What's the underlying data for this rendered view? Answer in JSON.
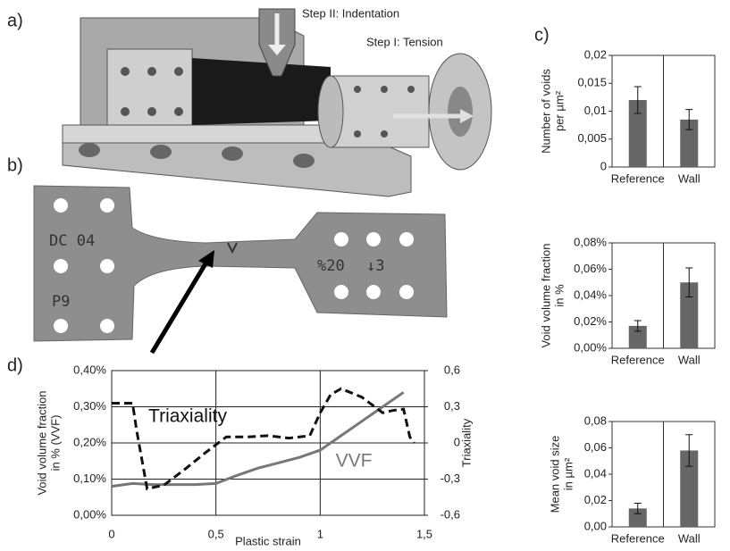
{
  "figure": {
    "panel_labels": [
      "a)",
      "b)",
      "c)",
      "d)"
    ],
    "step_labels": [
      "Step II: Indentation",
      "Step I: Tension"
    ],
    "specimen_marks": [
      "DC 04",
      "P9",
      "%20",
      "↓3"
    ]
  },
  "chart_data": [
    {
      "type": "bar",
      "ylabel": [
        "Number of voids",
        "per µm²"
      ],
      "categories": [
        "Reference",
        "Wall"
      ],
      "values": [
        0.012,
        0.0085
      ],
      "errors": [
        0.0024,
        0.0018
      ],
      "color": "#666666",
      "ylim": [
        0,
        0.02
      ],
      "yticks": [
        0,
        {
          "value": 0.005,
          "label": "0,005"
        },
        {
          "value": 0.01,
          "label": "0,01"
        },
        {
          "value": 0.015,
          "label": "0,015"
        },
        {
          "value": 0.02,
          "label": "0,02"
        }
      ]
    },
    {
      "type": "bar",
      "ylabel": [
        "Void volume fraction",
        "in %"
      ],
      "categories": [
        "Reference",
        "Wall"
      ],
      "values": [
        0.017,
        0.05
      ],
      "errors": [
        0.004,
        0.011
      ],
      "color": "#666666",
      "ylim": [
        0,
        0.08
      ],
      "yticks": [
        {
          "value": 0,
          "label": "0,00%"
        },
        {
          "value": 0.02,
          "label": "0,02%"
        },
        {
          "value": 0.04,
          "label": "0,04%"
        },
        {
          "value": 0.06,
          "label": "0,06%"
        },
        {
          "value": 0.08,
          "label": "0,08%"
        }
      ]
    },
    {
      "type": "bar",
      "ylabel": [
        "Mean void size",
        "in µm²"
      ],
      "categories": [
        "Reference",
        "Wall"
      ],
      "values": [
        0.014,
        0.058
      ],
      "errors": [
        0.004,
        0.012
      ],
      "color": "#666666",
      "ylim": [
        0,
        0.08
      ],
      "yticks": [
        {
          "value": 0,
          "label": "0,00"
        },
        {
          "value": 0.02,
          "label": "0,02"
        },
        {
          "value": 0.04,
          "label": "0,04"
        },
        {
          "value": 0.06,
          "label": "0,06"
        },
        {
          "value": 0.08,
          "label": "0,08"
        }
      ]
    },
    {
      "type": "line",
      "xlabel": "Plastic strain",
      "ylabel": [
        "Void volume fraction",
        "in % (VVF)"
      ],
      "y2label": "Triaxiality",
      "xlim": [
        0,
        1.5
      ],
      "xticks": [
        0,
        {
          "value": 0.5,
          "label": "0,5"
        },
        1,
        {
          "value": 1.5,
          "label": "1,5"
        }
      ],
      "ylim": [
        0,
        0.4
      ],
      "yticks": [
        {
          "value": 0,
          "label": "0,00%"
        },
        {
          "value": 0.1,
          "label": "0,10%"
        },
        {
          "value": 0.2,
          "label": "0,20%"
        },
        {
          "value": 0.3,
          "label": "0,30%"
        },
        {
          "value": 0.4,
          "label": "0,40%"
        }
      ],
      "y2lim": [
        -0.6,
        0.6
      ],
      "y2ticks": [
        {
          "value": -0.6,
          "label": "-0,6"
        },
        {
          "value": -0.3,
          "label": "-0,3"
        },
        0,
        {
          "value": 0.3,
          "label": "0,3"
        },
        {
          "value": 0.6,
          "label": "0,6"
        }
      ],
      "grid": true,
      "series": [
        {
          "name": "VVF",
          "color": "#777777",
          "line_style": "solid",
          "x": [
            0,
            0.1,
            0.2,
            0.3,
            0.4,
            0.5,
            0.6,
            0.7,
            0.8,
            0.9,
            1.0,
            1.1,
            1.2,
            1.3,
            1.4
          ],
          "values": [
            0.08,
            0.088,
            0.085,
            0.085,
            0.085,
            0.088,
            0.11,
            0.13,
            0.145,
            0.16,
            0.18,
            0.22,
            0.26,
            0.3,
            0.34
          ]
        },
        {
          "name": "Triaxiality",
          "color": "#111111",
          "line_style": "dashed",
          "axis": "y2",
          "x": [
            0,
            0.1,
            0.12,
            0.17,
            0.25,
            0.35,
            0.45,
            0.55,
            0.65,
            0.75,
            0.85,
            0.95,
            1.0,
            1.05,
            1.1,
            1.2,
            1.3,
            1.35,
            1.4,
            1.43,
            1.45
          ],
          "values": [
            0.33,
            0.33,
            0.1,
            -0.38,
            -0.35,
            -0.22,
            -0.08,
            0.05,
            0.05,
            0.06,
            0.04,
            0.06,
            0.25,
            0.4,
            0.45,
            0.38,
            0.25,
            0.27,
            0.28,
            0.05,
            0.0
          ]
        }
      ]
    }
  ]
}
